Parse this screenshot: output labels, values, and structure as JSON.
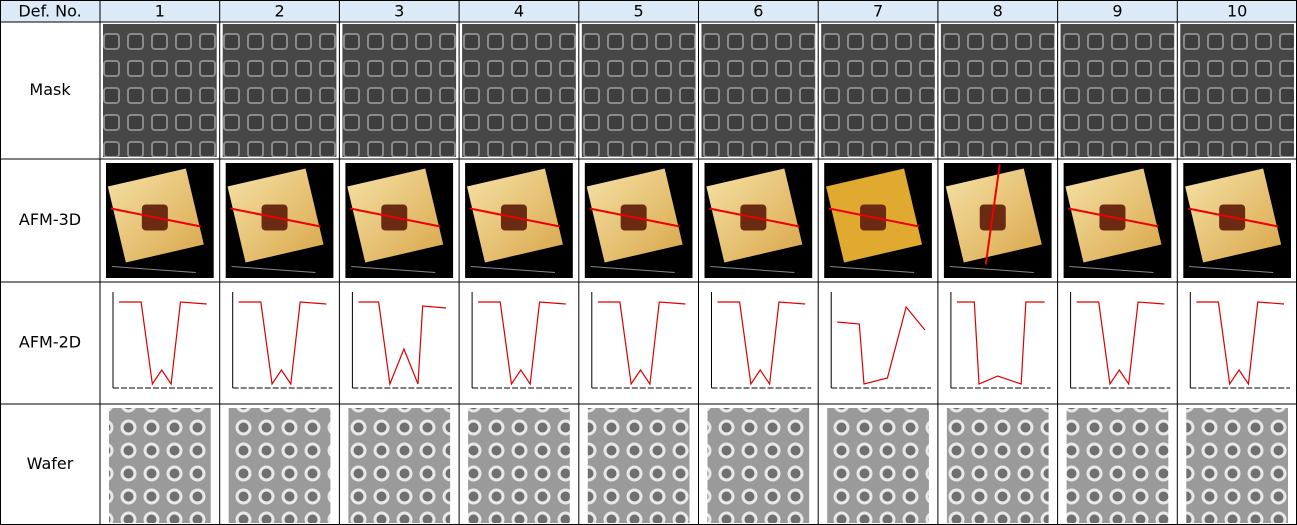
{
  "table": {
    "header": [
      "Def. No.",
      1,
      2,
      3,
      4,
      5,
      6,
      7,
      8,
      9,
      10
    ],
    "row_labels": [
      "Mask",
      "AFM-3D",
      "AFM-2D",
      "Wafer"
    ]
  }
}
